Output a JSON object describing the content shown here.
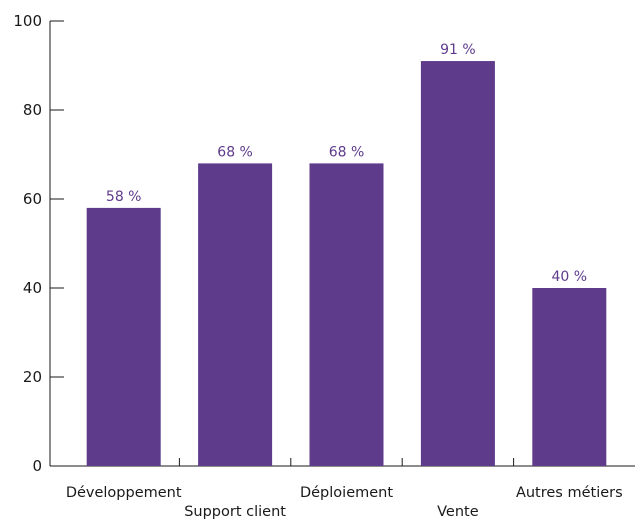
{
  "chart_data": {
    "type": "bar",
    "title": "",
    "xlabel": "",
    "ylabel": "",
    "categories": [
      "Développement",
      "Support client",
      "Déploiement",
      "Vente",
      "Autres métiers"
    ],
    "values": [
      58,
      68,
      68,
      91,
      40
    ],
    "value_labels": [
      "58 %",
      "68 %",
      "68 %",
      "91 %",
      "40 %"
    ],
    "ylim": [
      0,
      100
    ],
    "yticks": [
      "0",
      "20",
      "40",
      "60",
      "80",
      "100"
    ],
    "grid": false,
    "legend": "none",
    "bar_color": "#5e3b8b",
    "label_color": "#5e3b8b"
  }
}
